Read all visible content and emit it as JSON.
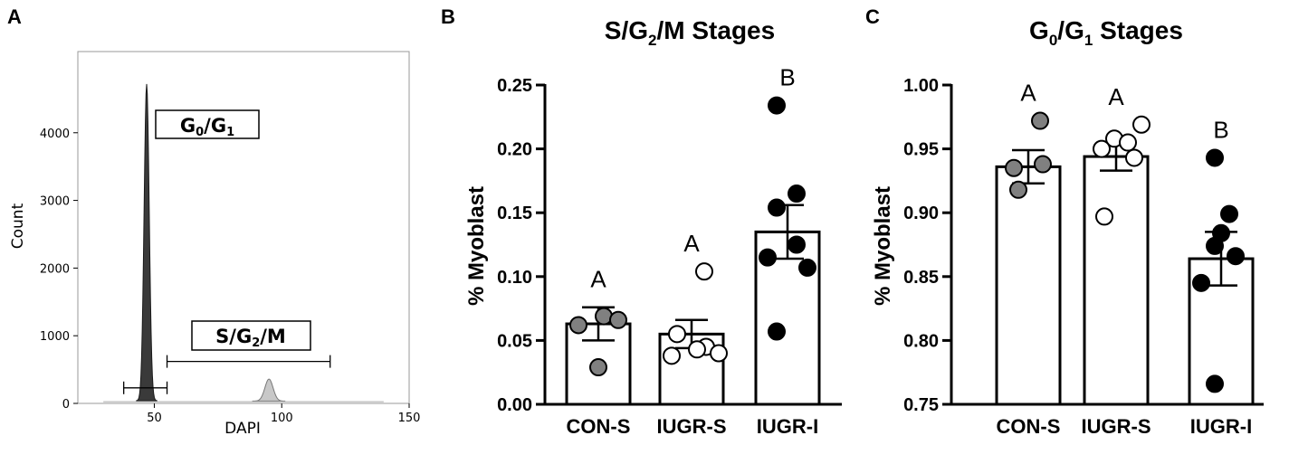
{
  "panels": {
    "a": {
      "letter": "A"
    },
    "b": {
      "letter": "B"
    },
    "c": {
      "letter": "C"
    }
  },
  "chart_data": [
    {
      "type": "histogram",
      "panel": "A",
      "title": "",
      "xlabel": "DAPI",
      "ylabel": "Count",
      "xlim": [
        20,
        150
      ],
      "ylim": [
        0,
        5200
      ],
      "x_ticks": [
        50,
        100,
        150
      ],
      "y_ticks": [
        0,
        1000,
        2000,
        3000,
        4000
      ],
      "peaks": [
        {
          "name": "G0/G1",
          "center": 47,
          "height": 4720,
          "color": "#3a3a3a"
        },
        {
          "name": "S/G2/M",
          "center": 95,
          "height": 360,
          "color": "#c8c8c8"
        }
      ],
      "gates": [
        {
          "label_base": "G",
          "label_sub1": "0",
          "label_mid": "/G",
          "label_sub2": "1",
          "label_end": "",
          "range": [
            38,
            55
          ],
          "level": 230
        },
        {
          "label_base": "S/G",
          "label_sub1": "2",
          "label_mid": "/M",
          "label_sub2": "",
          "label_end": "",
          "range": [
            55,
            119
          ],
          "level": 620
        }
      ]
    },
    {
      "type": "bar",
      "panel": "B",
      "title_base": "S/G",
      "title_sub": "2",
      "title_end": "/M Stages",
      "xlabel": "",
      "ylabel": "% Myoblast",
      "ylim": [
        0,
        0.25
      ],
      "y_ticks": [
        "0.00",
        "0.05",
        "0.10",
        "0.15",
        "0.20",
        "0.25"
      ],
      "categories": [
        "CON-S",
        "IUGR-S",
        "IUGR-I"
      ],
      "means": [
        0.063,
        0.055,
        0.135
      ],
      "sem": [
        0.013,
        0.011,
        0.021
      ],
      "letters": [
        "A",
        "A",
        "B"
      ],
      "point_fill": [
        "#808080",
        "#ffffff",
        "#000000"
      ],
      "points": [
        [
          0.069,
          0.062,
          0.066,
          0.029
        ],
        [
          0.104,
          0.055,
          0.045,
          0.038,
          0.04,
          0.043
        ],
        [
          0.234,
          0.165,
          0.154,
          0.125,
          0.115,
          0.107,
          0.057
        ]
      ]
    },
    {
      "type": "bar",
      "panel": "C",
      "title_base": "G",
      "title_sub1": "0",
      "title_mid": "/G",
      "title_sub2": "1",
      "title_end": " Stages",
      "xlabel": "",
      "ylabel": "% Myoblast",
      "ylim": [
        0.75,
        1.0
      ],
      "y_ticks": [
        "0.75",
        "0.80",
        "0.85",
        "0.90",
        "0.95",
        "1.00"
      ],
      "categories": [
        "CON-S",
        "IUGR-S",
        "IUGR-I"
      ],
      "means": [
        0.936,
        0.944,
        0.864
      ],
      "sem": [
        0.013,
        0.011,
        0.021
      ],
      "letters": [
        "A",
        "A",
        "B"
      ],
      "point_fill": [
        "#808080",
        "#ffffff",
        "#000000"
      ],
      "points": [
        [
          0.972,
          0.935,
          0.938,
          0.918
        ],
        [
          0.969,
          0.958,
          0.955,
          0.95,
          0.943,
          0.897
        ],
        [
          0.943,
          0.899,
          0.884,
          0.874,
          0.866,
          0.845,
          0.766
        ]
      ]
    }
  ]
}
